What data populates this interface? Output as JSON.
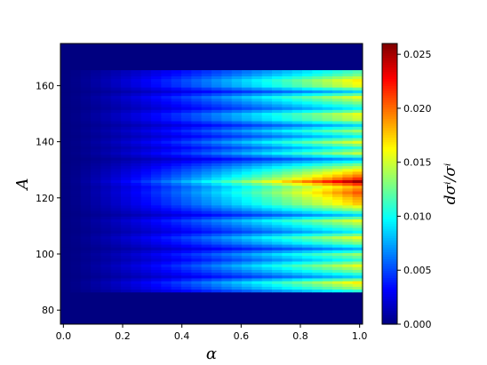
{
  "chart_data": {
    "type": "heatmap",
    "title": "",
    "xlabel": "α",
    "ylabel": "A",
    "colorbar_label": "dσⁱ/σⁱ",
    "colormap": "jet",
    "xlim": [
      -0.01,
      1.01
    ],
    "ylim": [
      75,
      175
    ],
    "x_ticks": [
      "0.0",
      "0.2",
      "0.4",
      "0.6",
      "0.8",
      "1.0"
    ],
    "x_tick_values": [
      0.0,
      0.2,
      0.4,
      0.6,
      0.8,
      1.0
    ],
    "y_ticks": [
      "80",
      "100",
      "120",
      "140",
      "160"
    ],
    "y_tick_values": [
      80,
      100,
      120,
      140,
      160
    ],
    "colorbar_range": [
      0,
      0.026
    ],
    "colorbar_ticks": [
      "0.000",
      "0.005",
      "0.010",
      "0.015",
      "0.020",
      "0.025"
    ],
    "colorbar_tick_values": [
      0.0,
      0.005,
      0.01,
      0.015,
      0.02,
      0.025
    ],
    "nonzero_A_range": [
      87,
      165
    ],
    "alpha_steps": 30,
    "A_step": 1,
    "peak": {
      "A": 126,
      "alpha": 1.0,
      "value": 0.0258
    },
    "row_profile_at_alpha_1": {
      "A": [
        87,
        88,
        90,
        92,
        94,
        96,
        98,
        100,
        102,
        104,
        106,
        108,
        110,
        112,
        114,
        116,
        118,
        120,
        122,
        124,
        125,
        126,
        127,
        128,
        130,
        132,
        134,
        136,
        138,
        140,
        142,
        144,
        146,
        148,
        150,
        152,
        154,
        156,
        158,
        160,
        162,
        164,
        165
      ],
      "value": [
        0.011,
        0.014,
        0.017,
        0.009,
        0.013,
        0.016,
        0.011,
        0.014,
        0.008,
        0.013,
        0.016,
        0.01,
        0.013,
        0.016,
        0.009,
        0.014,
        0.018,
        0.019,
        0.021,
        0.019,
        0.022,
        0.0258,
        0.022,
        0.02,
        0.017,
        0.013,
        0.008,
        0.015,
        0.011,
        0.016,
        0.01,
        0.014,
        0.009,
        0.015,
        0.016,
        0.01,
        0.013,
        0.016,
        0.009,
        0.016,
        0.017,
        0.013,
        0.012
      ]
    }
  }
}
